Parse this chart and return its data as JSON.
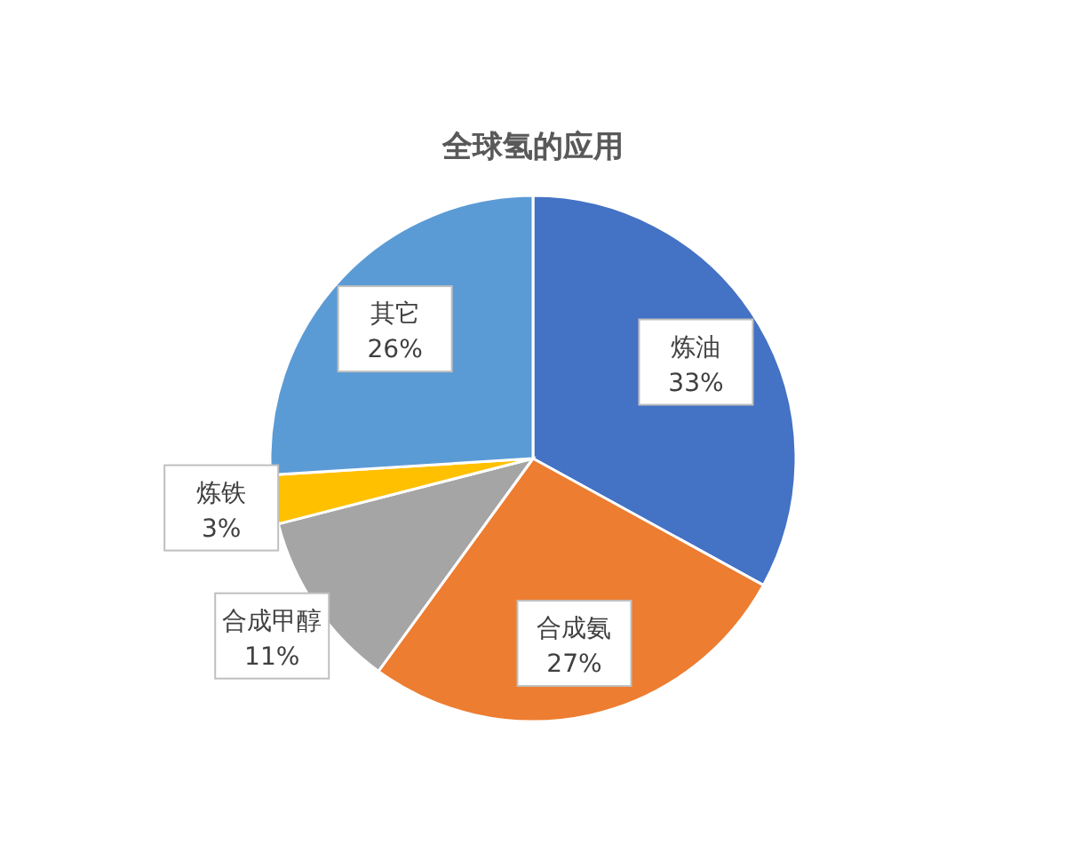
{
  "chart_data": {
    "type": "pie",
    "title": "全球氢的应用",
    "categories": [
      "炼油",
      "合成氨",
      "合成甲醇",
      "炼铁",
      "其它"
    ],
    "values": [
      33,
      27,
      11,
      3,
      26
    ],
    "colors": [
      "#4472c4",
      "#ed7d31",
      "#a5a5a5",
      "#ffc000",
      "#5b9bd5"
    ],
    "value_labels": [
      "33%",
      "27%",
      "11%",
      "3%",
      "26%"
    ]
  }
}
